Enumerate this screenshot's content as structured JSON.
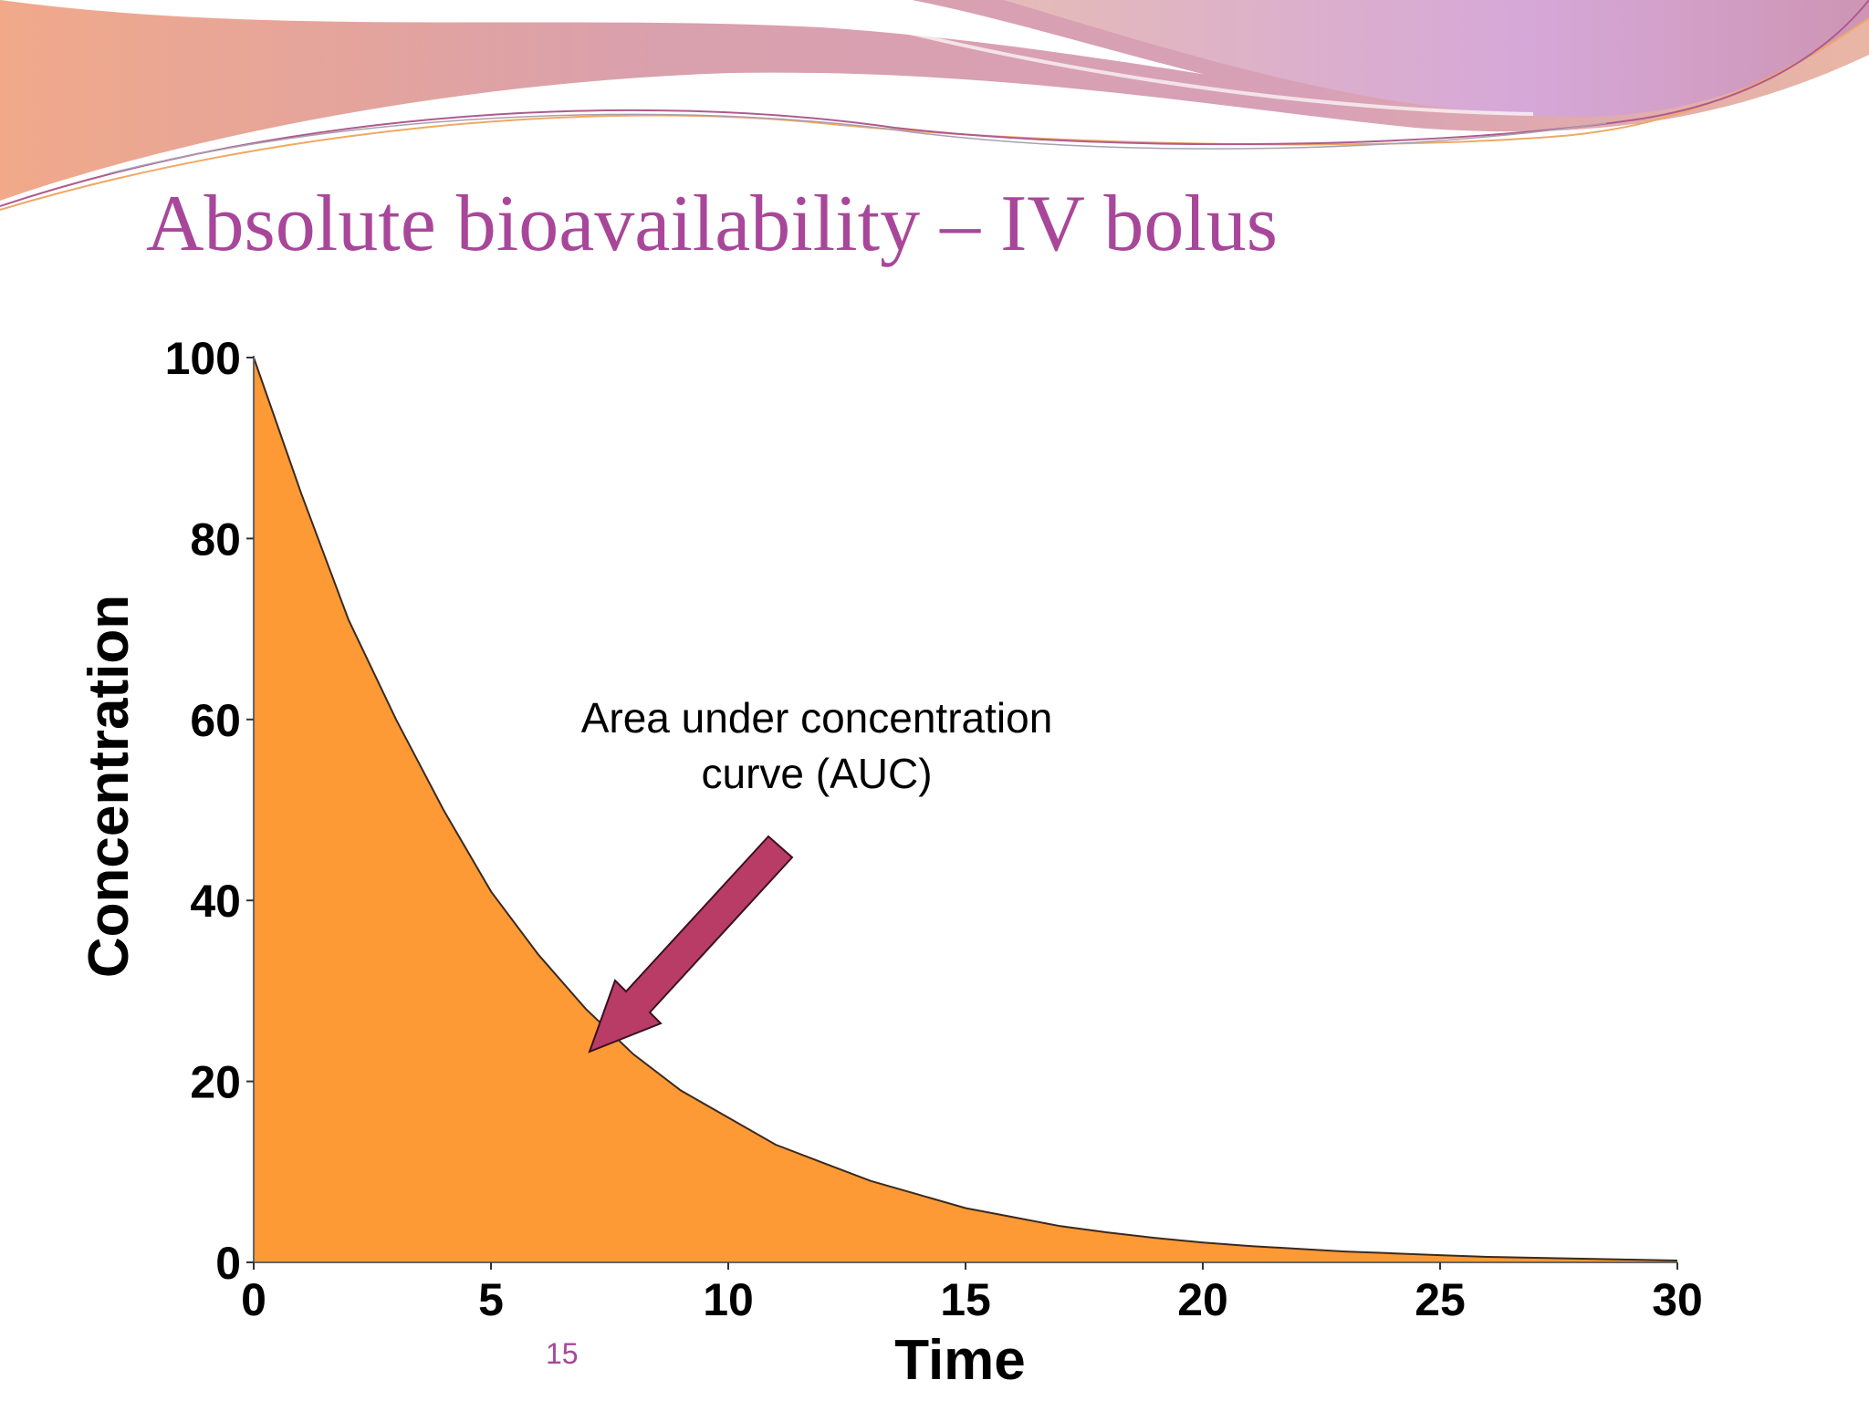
{
  "slide": {
    "title": "Absolute bioavailability – IV bolus",
    "page_number": "15",
    "colors": {
      "title": "#a8479a",
      "area_fill": "#fd9a35",
      "arrow_fill": "#b83c66",
      "banner_purple": "#b99ad0",
      "banner_peach": "#f1a98a",
      "banner_pink": "#d58fa5"
    }
  },
  "chart_data": {
    "type": "area",
    "title": "",
    "xlabel": "Time",
    "ylabel": "Concentration",
    "xlim": [
      0,
      30
    ],
    "ylim": [
      0,
      100
    ],
    "x_ticks": [
      "0",
      "5",
      "10",
      "15",
      "20",
      "25",
      "30"
    ],
    "y_ticks": [
      "0",
      "20",
      "40",
      "60",
      "80",
      "100"
    ],
    "grid": false,
    "legend": "none",
    "series": [
      {
        "x": [
          0,
          1,
          2,
          3,
          4,
          5,
          6,
          7,
          8,
          9,
          10,
          11,
          12,
          13,
          14,
          15,
          16,
          17,
          18,
          19,
          20,
          21,
          22,
          23,
          24,
          25,
          26,
          27,
          28,
          29,
          30
        ],
        "values": [
          100,
          85,
          71,
          60,
          50,
          41,
          34,
          28,
          23,
          19,
          16,
          13,
          11,
          9,
          7.5,
          6,
          5,
          4,
          3.3,
          2.7,
          2.2,
          1.8,
          1.5,
          1.2,
          1.0,
          0.8,
          0.6,
          0.5,
          0.4,
          0.3,
          0.2
        ]
      }
    ],
    "annotations": [
      {
        "text_lines": [
          "Area under concentration",
          "curve (AUC)"
        ],
        "points_to": {
          "x": 7,
          "y": 23
        }
      }
    ]
  }
}
